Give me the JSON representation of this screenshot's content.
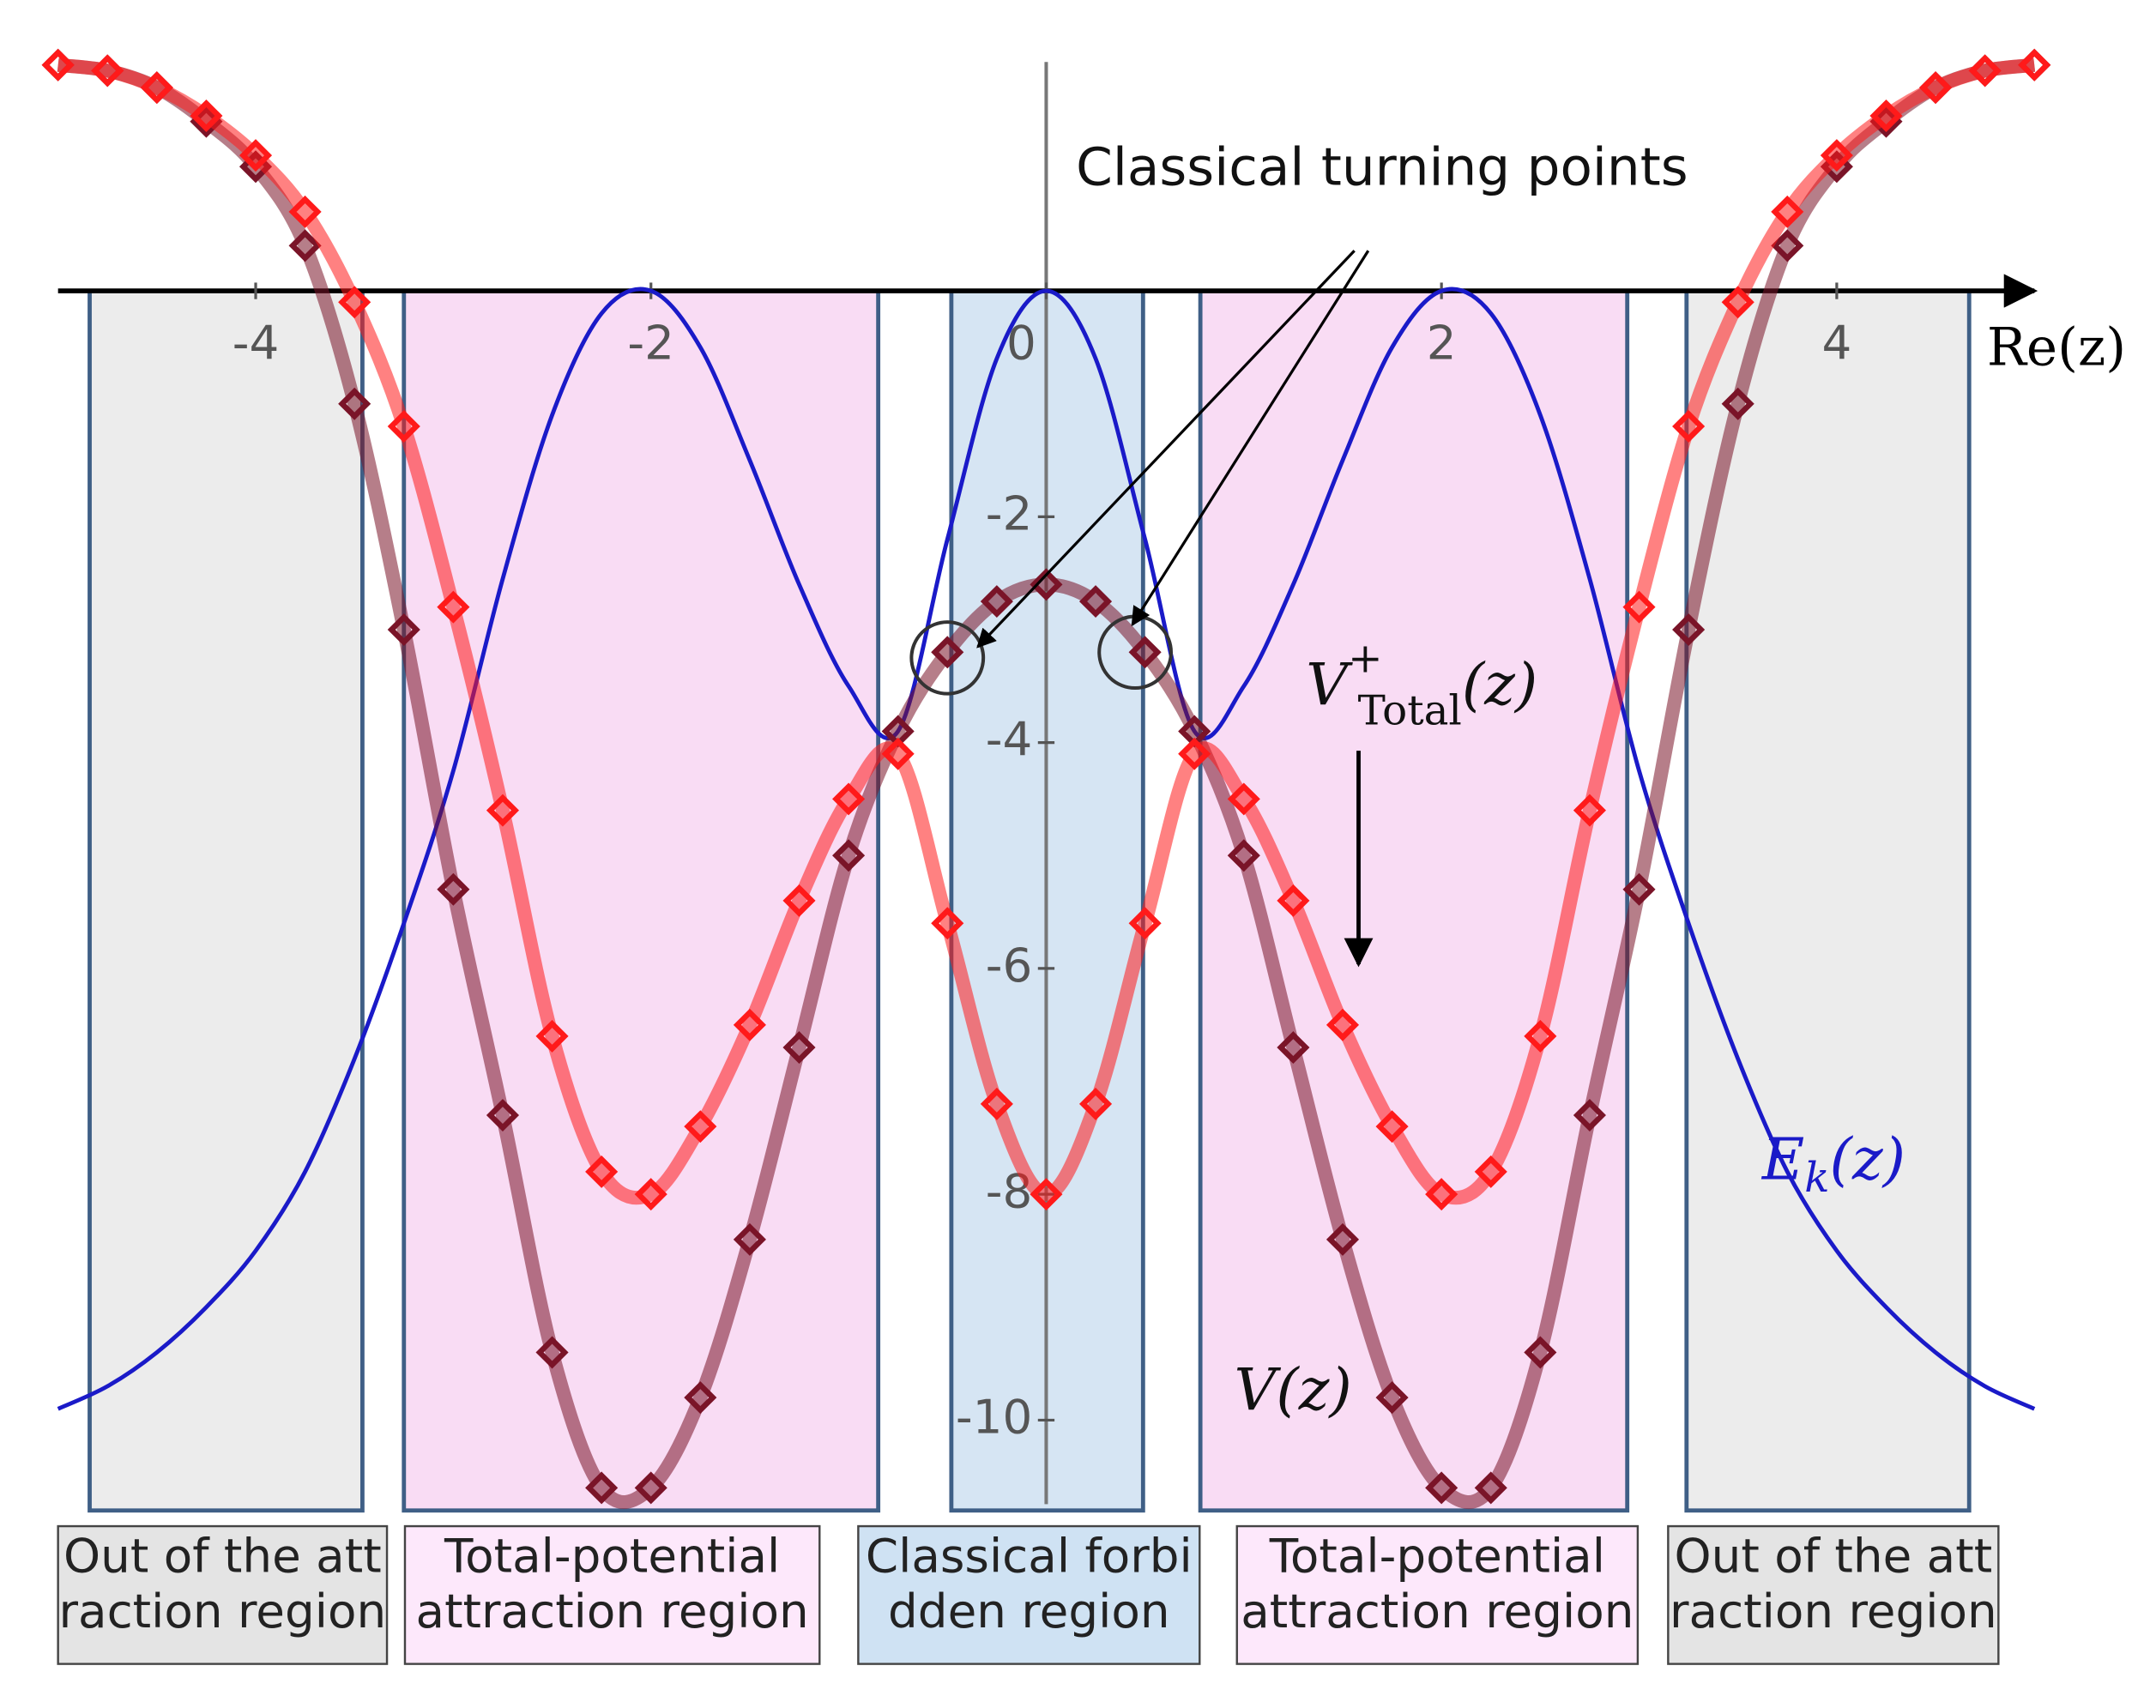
{
  "chart_data": {
    "type": "line",
    "x": [
      -5,
      -4.75,
      -4.5,
      -4.25,
      -4,
      -3.75,
      -3.5,
      -3.25,
      -3,
      -2.75,
      -2.5,
      -2.25,
      -2,
      -1.75,
      -1.5,
      -1.25,
      -1,
      -0.75,
      -0.5,
      -0.25,
      0,
      0.25,
      0.5,
      0.75,
      1,
      1.25,
      1.5,
      1.75,
      2,
      2.25,
      2.5,
      2.75,
      3,
      3.25,
      3.5,
      3.75,
      4,
      4.25,
      4.5,
      4.75,
      5
    ],
    "series": [
      {
        "color": "#1a1ac8",
        "marker": "none",
        "label": {
          "main": "E",
          "sub": "k",
          "rest": "(z)"
        },
        "values": [
          -9.9,
          -9.7,
          -9.4,
          -9.0,
          -8.5,
          -7.8,
          -6.8,
          -5.6,
          -4.25,
          -2.55,
          -1.1,
          -0.2,
          0,
          -0.5,
          -1.5,
          -2.6,
          -3.5,
          -3.9,
          -2.2,
          -0.6,
          0,
          -0.6,
          -2.2,
          -3.9,
          -3.5,
          -2.6,
          -1.5,
          -0.5,
          0,
          -0.2,
          -1.1,
          -2.55,
          -4.25,
          -5.6,
          -6.8,
          -7.8,
          -8.5,
          -9.0,
          -9.4,
          -9.7,
          -9.9
        ]
      },
      {
        "color": "#7a1428",
        "marker": "diamond",
        "label": {
          "main": "V",
          "rest": "(z)"
        },
        "values": [
          2.0,
          1.95,
          1.8,
          1.5,
          1.1,
          0.4,
          -1.0,
          -3.0,
          -5.3,
          -7.3,
          -9.4,
          -10.6,
          -10.6,
          -9.8,
          -8.4,
          -6.7,
          -5.0,
          -3.9,
          -3.2,
          -2.75,
          -2.6,
          -2.75,
          -3.2,
          -3.9,
          -5.0,
          -6.7,
          -8.4,
          -9.8,
          -10.6,
          -10.6,
          -9.4,
          -7.3,
          -5.3,
          -3.0,
          -1.0,
          0.4,
          1.1,
          1.5,
          1.8,
          1.95,
          2.0
        ]
      },
      {
        "color": "#ff1a1a",
        "marker": "diamond",
        "label": {
          "main": "V",
          "sup": "+",
          "sub": "Total",
          "rest": "(z)"
        },
        "values": [
          2.0,
          1.95,
          1.8,
          1.55,
          1.2,
          0.7,
          -0.1,
          -1.2,
          -2.8,
          -4.6,
          -6.6,
          -7.8,
          -8.0,
          -7.4,
          -6.5,
          -5.4,
          -4.5,
          -4.1,
          -5.6,
          -7.2,
          -8,
          -7.2,
          -5.6,
          -4.1,
          -4.5,
          -5.4,
          -6.5,
          -7.4,
          -8.0,
          -7.8,
          -6.6,
          -4.6,
          -2.8,
          -1.2,
          -0.1,
          0.7,
          1.2,
          1.55,
          1.8,
          1.95,
          2.0
        ]
      }
    ],
    "xlim": [
      -5,
      5
    ],
    "ylim": [
      -11,
      2.1
    ],
    "xticks": [
      -4,
      -2,
      0,
      2,
      4
    ],
    "yticks": [
      -10,
      -8,
      -6,
      -4,
      -2
    ],
    "x_label": "Re(z)",
    "region_ylim": [
      -10.8,
      0
    ],
    "regions": [
      {
        "x_range": [
          -4.84,
          -3.46
        ],
        "color": "#e9e9e9",
        "label_color": "#e4e4e4",
        "label": [
          "Out of the att",
          "raction region"
        ]
      },
      {
        "x_range": [
          -3.25,
          -0.85
        ],
        "color": "#f8d6f2",
        "label_color": "#fde8fb",
        "label": [
          "Total-potential",
          "attraction region"
        ]
      },
      {
        "x_range": [
          -0.48,
          0.49
        ],
        "color": "#cfe0f1",
        "label_color": "#cfe2f3",
        "label": [
          "Classical forbi",
          "dden region"
        ]
      },
      {
        "x_range": [
          0.78,
          2.94
        ],
        "color": "#f8d6f2",
        "label_color": "#fde8fb",
        "label": [
          "Total-potential",
          "attraction region"
        ]
      },
      {
        "x_range": [
          3.24,
          4.67
        ],
        "color": "#e9e9e9",
        "label_color": "#e4e4e4",
        "label": [
          "Out of the att",
          "raction region"
        ]
      }
    ],
    "annotations": [
      {
        "text": "Classical turning points",
        "points": [
          {
            "x": -0.5,
            "y": -3.25
          },
          {
            "x": 0.45,
            "y": -3.2
          }
        ]
      }
    ]
  }
}
